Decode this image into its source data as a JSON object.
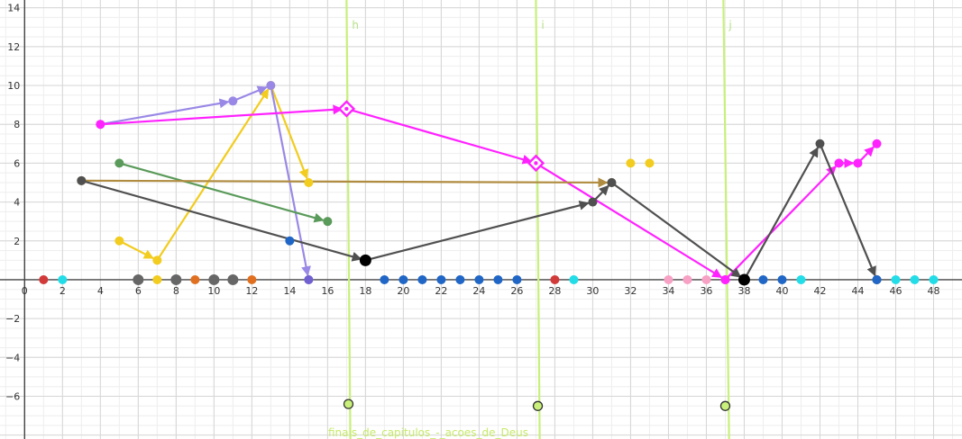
{
  "chart_data": {
    "type": "scatter",
    "xlim": [
      -1.3,
      49.5
    ],
    "ylim": [
      -8.2,
      14.4
    ],
    "x_ticks": [
      0,
      2,
      4,
      6,
      8,
      10,
      12,
      14,
      16,
      18,
      20,
      22,
      24,
      26,
      28,
      30,
      32,
      34,
      36,
      38,
      40,
      42,
      44,
      46,
      48
    ],
    "y_ticks": [
      14,
      12,
      10,
      8,
      6,
      4,
      2,
      -2,
      -4,
      -6
    ],
    "grid": true,
    "vertical_lines": [
      {
        "label": "h",
        "top": [
          17,
          14.4
        ],
        "bottom": [
          17.2,
          -8.2
        ]
      },
      {
        "label": "i",
        "top": [
          27,
          14.4
        ],
        "bottom": [
          27.2,
          -8.2
        ]
      },
      {
        "label": "j",
        "top": [
          36.9,
          14.4
        ],
        "bottom": [
          37.2,
          -8.2
        ]
      }
    ],
    "caption": "finais_de_capitulos_-_acoes_de_Deus",
    "axis_points": [
      {
        "x": 1,
        "color": "#d23a3a"
      },
      {
        "x": 2,
        "color": "#22dde8"
      },
      {
        "x": 6,
        "color": "#666666"
      },
      {
        "x": 7,
        "color": "#f2cc1e"
      },
      {
        "x": 8,
        "color": "#666666"
      },
      {
        "x": 9,
        "color": "#e07020"
      },
      {
        "x": 10,
        "color": "#666666"
      },
      {
        "x": 11,
        "color": "#666666"
      },
      {
        "x": 12,
        "color": "#e07020"
      },
      {
        "x": 15,
        "color": "#7060d0"
      },
      {
        "x": 19,
        "color": "#1f66c6"
      },
      {
        "x": 20,
        "color": "#1f66c6"
      },
      {
        "x": 21,
        "color": "#1f66c6"
      },
      {
        "x": 22,
        "color": "#1f66c6"
      },
      {
        "x": 23,
        "color": "#1f66c6"
      },
      {
        "x": 24,
        "color": "#1f66c6"
      },
      {
        "x": 25,
        "color": "#1f66c6"
      },
      {
        "x": 26,
        "color": "#1f66c6"
      },
      {
        "x": 28,
        "color": "#d23a3a"
      },
      {
        "x": 29,
        "color": "#22dde8"
      },
      {
        "x": 34,
        "color": "#f7a1c4"
      },
      {
        "x": 35,
        "color": "#f7a1c4"
      },
      {
        "x": 36,
        "color": "#f7a1c4"
      },
      {
        "x": 37,
        "color": "#ff22ff"
      },
      {
        "x": 38,
        "color": "#000000"
      },
      {
        "x": 39,
        "color": "#1f66c6"
      },
      {
        "x": 40,
        "color": "#1f66c6"
      },
      {
        "x": 41,
        "color": "#22dde8"
      },
      {
        "x": 45,
        "color": "#1f66c6"
      },
      {
        "x": 46,
        "color": "#22dde8"
      },
      {
        "x": 47,
        "color": "#22dde8"
      },
      {
        "x": 48,
        "color": "#22dde8"
      }
    ],
    "points": [
      {
        "x": 14,
        "y": 2,
        "color": "#1f66c6"
      },
      {
        "x": 32,
        "y": 6,
        "color": "#f2cc1e"
      },
      {
        "x": 33,
        "y": 6,
        "color": "#f2cc1e"
      },
      {
        "x": 17.1,
        "y": -6.4,
        "color": "#c8f07a",
        "hollow": true
      },
      {
        "x": 27.1,
        "y": -6.5,
        "color": "#c8f07a",
        "hollow": true
      },
      {
        "x": 37,
        "y": -6.5,
        "color": "#c8f07a",
        "hollow": true
      }
    ],
    "series": [
      {
        "color": "#f2cc1e",
        "vertices": [
          [
            5,
            2
          ],
          [
            7,
            1
          ],
          [
            13,
            10
          ],
          [
            15,
            5
          ]
        ]
      },
      {
        "color": "#9a88e6",
        "vertices": [
          [
            4,
            8
          ],
          [
            11,
            9.2
          ],
          [
            13,
            10
          ],
          [
            15,
            0
          ]
        ]
      },
      {
        "color": "#ff22ff",
        "vertices": [
          [
            4,
            8
          ],
          [
            17,
            8.8
          ],
          [
            27,
            6
          ],
          [
            37,
            0
          ],
          [
            43,
            6
          ],
          [
            44,
            6
          ],
          [
            45,
            7
          ]
        ],
        "diamonds": [
          [
            17,
            8.8
          ],
          [
            27,
            6
          ]
        ]
      },
      {
        "color": "#5a9a5a",
        "vertices": [
          [
            5,
            6
          ],
          [
            16,
            3
          ]
        ]
      },
      {
        "color": "#b08c40",
        "vertices": [
          [
            3,
            5.1
          ],
          [
            31,
            5
          ]
        ]
      },
      {
        "color": "#505050",
        "vertices": [
          [
            3,
            5.1
          ],
          [
            18,
            1
          ],
          [
            30,
            4
          ],
          [
            31,
            5
          ],
          [
            38,
            0
          ],
          [
            42,
            7
          ],
          [
            45,
            0
          ]
        ]
      }
    ]
  }
}
